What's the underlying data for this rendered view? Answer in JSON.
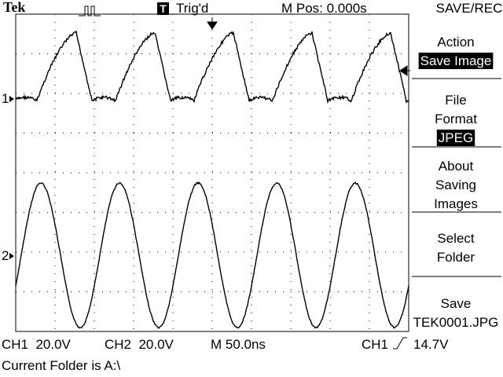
{
  "header": {
    "brand": "Tek",
    "trigger_badge": "T",
    "trigger_status": "Trig'd",
    "position": "M Pos: 0.000s",
    "menu_title": "SAVE/REC"
  },
  "menu": [
    {
      "lines": [
        "Action"
      ],
      "selected": "Save Image"
    },
    {
      "lines": [
        "File",
        "Format"
      ],
      "selected": "JPEG"
    },
    {
      "lines": [
        "About",
        "Saving",
        "Images"
      ]
    },
    {
      "lines": [
        "Select",
        "Folder"
      ]
    },
    {
      "lines": [
        "Save",
        "TEK0001.JPG"
      ]
    }
  ],
  "channels": [
    {
      "marker": "1"
    },
    {
      "marker": "2"
    }
  ],
  "status": {
    "ch1": "CH1  20.0V",
    "ch2": "CH2  20.0V",
    "timebase": "M 50.0ns",
    "trigger_source": "CH1",
    "trigger_level": "14.7V",
    "folder": "Current Folder is A:\\"
  }
}
